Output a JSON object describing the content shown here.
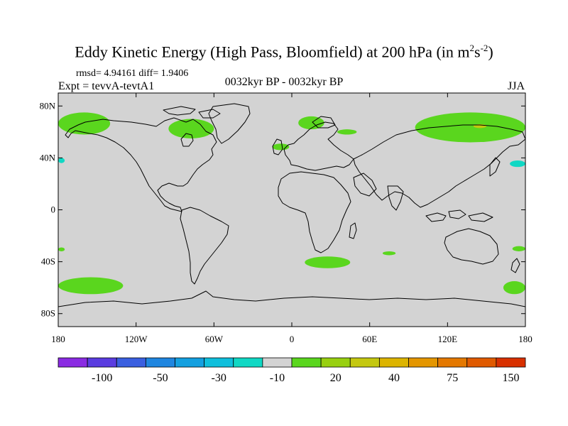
{
  "title": {
    "main": "Eddy Kinetic Energy (High Pass, Bloomfield) at 200 hPa (in m",
    "sup1": "2",
    "mid": "s",
    "sup2": "-2",
    "close": ")"
  },
  "subtitle": {
    "stats": "rmsd= 4.94161 diff= 1.9406",
    "expt": "Expt = tevvA-tevtA1",
    "period": "0032kyr BP - 0032kyr BP",
    "season": "JJA"
  },
  "axes": {
    "lat_labels": [
      "80N",
      "40N",
      "0",
      "40S",
      "80S"
    ],
    "lat_values": [
      80,
      40,
      0,
      -40,
      -80
    ],
    "lon_labels": [
      "180",
      "120W",
      "60W",
      "0",
      "60E",
      "120E",
      "180"
    ],
    "lon_values": [
      -180,
      -120,
      -60,
      0,
      60,
      120,
      180
    ],
    "lat_range": [
      -90,
      90
    ],
    "lon_range": [
      -180,
      180
    ]
  },
  "colorbar": {
    "colors": [
      "#8a2be2",
      "#5a3ce0",
      "#3a5fe0",
      "#1f86e0",
      "#14a0e0",
      "#0fbfdc",
      "#10d8c4",
      "#d3d3d3",
      "#5ad61e",
      "#98d010",
      "#c4c810",
      "#dcb400",
      "#e49600",
      "#e47800",
      "#e05a00",
      "#d83000"
    ],
    "labels": [
      "-100",
      "-50",
      "-30",
      "-10",
      "20",
      "40",
      "75",
      "150"
    ],
    "label_after_box": [
      1,
      3,
      5,
      7,
      9,
      11,
      13,
      15
    ]
  },
  "chart_data": {
    "type": "map",
    "field": "difference",
    "background_color": "#d3d3d3",
    "regions": [
      {
        "color": "#5ad61e",
        "lon": [
          -180,
          -140
        ],
        "lat": [
          58,
          75
        ]
      },
      {
        "color": "#5ad61e",
        "lon": [
          -95,
          -60
        ],
        "lat": [
          55,
          70
        ]
      },
      {
        "color": "#5ad61e",
        "lon": [
          -15,
          -2
        ],
        "lat": [
          46,
          51
        ]
      },
      {
        "color": "#5ad61e",
        "lon": [
          5,
          25
        ],
        "lat": [
          62,
          72
        ]
      },
      {
        "color": "#5ad61e",
        "lon": [
          35,
          50
        ],
        "lat": [
          58,
          62
        ]
      },
      {
        "color": "#5ad61e",
        "lon": [
          95,
          180
        ],
        "lat": [
          52,
          75
        ]
      },
      {
        "color": "#c4c810",
        "lon": [
          140,
          150
        ],
        "lat": [
          63,
          66
        ]
      },
      {
        "color": "#10d8c4",
        "lon": [
          -180,
          -175
        ],
        "lat": [
          36,
          40
        ]
      },
      {
        "color": "#10d8c4",
        "lon": [
          168,
          180
        ],
        "lat": [
          33,
          38
        ]
      },
      {
        "color": "#5ad61e",
        "lon": [
          -180,
          -175
        ],
        "lat": [
          -32,
          -29
        ]
      },
      {
        "color": "#5ad61e",
        "lon": [
          -180,
          -130
        ],
        "lat": [
          -65,
          -52
        ]
      },
      {
        "color": "#5ad61e",
        "lon": [
          10,
          45
        ],
        "lat": [
          -45,
          -36
        ]
      },
      {
        "color": "#5ad61e",
        "lon": [
          70,
          80
        ],
        "lat": [
          -35,
          -32
        ]
      },
      {
        "color": "#5ad61e",
        "lon": [
          163,
          180
        ],
        "lat": [
          -65,
          -55
        ]
      },
      {
        "color": "#5ad61e",
        "lon": [
          170,
          180
        ],
        "lat": [
          -32,
          -28
        ]
      }
    ]
  }
}
